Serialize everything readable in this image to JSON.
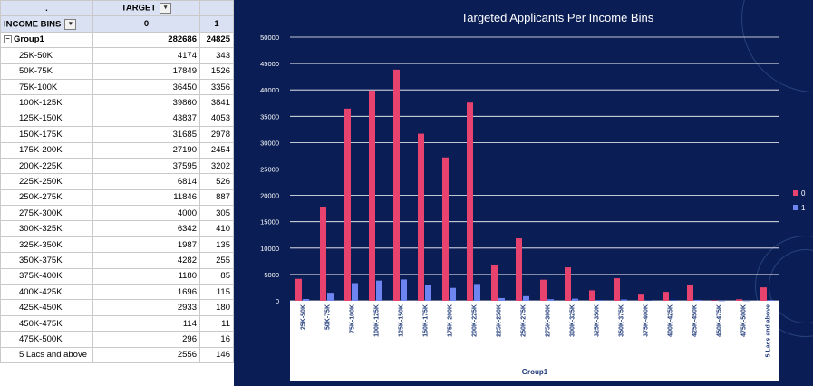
{
  "pivot": {
    "target_header": "TARGET",
    "row_header": "INCOME BINS",
    "col_values": [
      "0",
      "1"
    ],
    "group": {
      "label": "Group1",
      "v0": "282686",
      "v1": "24825"
    },
    "rows": [
      {
        "bin": "25K-50K",
        "v0": "4174",
        "v1": "343"
      },
      {
        "bin": "50K-75K",
        "v0": "17849",
        "v1": "1526"
      },
      {
        "bin": "75K-100K",
        "v0": "36450",
        "v1": "3356"
      },
      {
        "bin": "100K-125K",
        "v0": "39860",
        "v1": "3841"
      },
      {
        "bin": "125K-150K",
        "v0": "43837",
        "v1": "4053"
      },
      {
        "bin": "150K-175K",
        "v0": "31685",
        "v1": "2978"
      },
      {
        "bin": "175K-200K",
        "v0": "27190",
        "v1": "2454"
      },
      {
        "bin": "200K-225K",
        "v0": "37595",
        "v1": "3202"
      },
      {
        "bin": "225K-250K",
        "v0": "6814",
        "v1": "526"
      },
      {
        "bin": "250K-275K",
        "v0": "11846",
        "v1": "887"
      },
      {
        "bin": "275K-300K",
        "v0": "4000",
        "v1": "305"
      },
      {
        "bin": "300K-325K",
        "v0": "6342",
        "v1": "410"
      },
      {
        "bin": "325K-350K",
        "v0": "1987",
        "v1": "135"
      },
      {
        "bin": "350K-375K",
        "v0": "4282",
        "v1": "255"
      },
      {
        "bin": "375K-400K",
        "v0": "1180",
        "v1": "85"
      },
      {
        "bin": "400K-425K",
        "v0": "1696",
        "v1": "115"
      },
      {
        "bin": "425K-450K",
        "v0": "2933",
        "v1": "180"
      },
      {
        "bin": "450K-475K",
        "v0": "114",
        "v1": "11"
      },
      {
        "bin": "475K-500K",
        "v0": "296",
        "v1": "16"
      },
      {
        "bin": "5 Lacs and above",
        "v0": "2556",
        "v1": "146"
      }
    ]
  },
  "colors": {
    "series0": "#e8426f",
    "series1": "#6e84f0",
    "chart_bg": "#0a1e55",
    "header_bg": "#d9e1f2"
  },
  "chart_data": {
    "type": "bar",
    "title": "Targeted Applicants Per Income Bins",
    "xlabel": "Group1",
    "ylabel": "",
    "ylim": [
      0,
      50000
    ],
    "yticks": [
      0,
      5000,
      10000,
      15000,
      20000,
      25000,
      30000,
      35000,
      40000,
      45000,
      50000
    ],
    "grid": true,
    "legend_position": "right",
    "categories": [
      "25K-50K",
      "50K-75K",
      "75K-100K",
      "100K-125K",
      "125K-150K",
      "150K-175K",
      "175K-200K",
      "200K-225K",
      "225K-250K",
      "250K-275K",
      "275K-300K",
      "300K-325K",
      "325K-350K",
      "350K-375K",
      "375K-400K",
      "400K-425K",
      "425K-450K",
      "450K-475K",
      "475K-500K",
      "5 Lacs and above"
    ],
    "series": [
      {
        "name": "0",
        "values": [
          4174,
          17849,
          36450,
          39860,
          43837,
          31685,
          27190,
          37595,
          6814,
          11846,
          4000,
          6342,
          1987,
          4282,
          1180,
          1696,
          2933,
          114,
          296,
          2556
        ]
      },
      {
        "name": "1",
        "values": [
          343,
          1526,
          3356,
          3841,
          4053,
          2978,
          2454,
          3202,
          526,
          887,
          305,
          410,
          135,
          255,
          85,
          115,
          180,
          11,
          16,
          146
        ]
      }
    ]
  }
}
